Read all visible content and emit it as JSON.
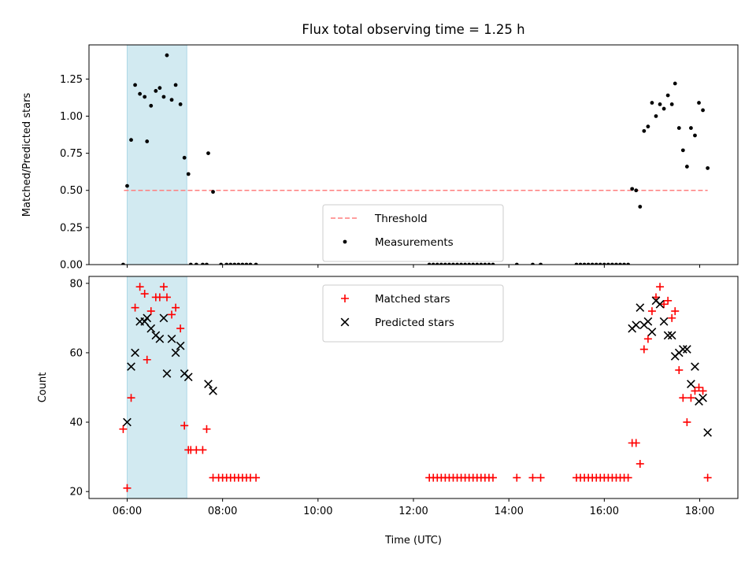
{
  "chart_data": {
    "title": "Flux total observing time = 1.25 h",
    "shaded_interval": [
      "06:00",
      "07:15"
    ],
    "shade_color": "#add8e6",
    "x_axis": {
      "label": "Time (UTC)",
      "range": [
        "05:12",
        "18:48"
      ],
      "ticks": [
        "06:00",
        "08:00",
        "10:00",
        "12:00",
        "14:00",
        "16:00",
        "18:00"
      ]
    },
    "panels": [
      {
        "type": "scatter",
        "ylabel": "Matched/Predicted stars",
        "ylim": [
          0,
          1.48
        ],
        "yticks": [
          "0.00",
          "0.25",
          "0.50",
          "0.75",
          "1.00",
          "1.25"
        ],
        "legend_position": "bottom-center",
        "threshold": {
          "name": "Threshold",
          "value": 0.5,
          "x_range": [
            "05:56",
            "18:10"
          ],
          "color": "#ff7f7f"
        },
        "series": [
          {
            "name": "Measurements",
            "color": "#000000",
            "marker": "dot",
            "points": [
              [
                "05:55",
                0.0
              ],
              [
                "06:00",
                0.53
              ],
              [
                "06:05",
                0.84
              ],
              [
                "06:10",
                1.21
              ],
              [
                "06:16",
                1.15
              ],
              [
                "06:22",
                1.13
              ],
              [
                "06:25",
                0.83
              ],
              [
                "06:30",
                1.07
              ],
              [
                "06:36",
                1.17
              ],
              [
                "06:41",
                1.19
              ],
              [
                "06:46",
                1.13
              ],
              [
                "06:50",
                1.41
              ],
              [
                "06:56",
                1.11
              ],
              [
                "07:01",
                1.21
              ],
              [
                "07:07",
                1.08
              ],
              [
                "07:12",
                0.72
              ],
              [
                "07:17",
                0.61
              ],
              [
                "07:20",
                0.0
              ],
              [
                "07:27",
                0.0
              ],
              [
                "07:35",
                0.0
              ],
              [
                "07:40",
                0.0
              ],
              [
                "07:42",
                0.75
              ],
              [
                "07:48",
                0.49
              ],
              [
                "07:58",
                0.0
              ],
              [
                "08:05",
                0.0
              ],
              [
                "08:10",
                0.0
              ],
              [
                "08:15",
                0.0
              ],
              [
                "08:20",
                0.0
              ],
              [
                "08:25",
                0.0
              ],
              [
                "08:30",
                0.0
              ],
              [
                "08:35",
                0.0
              ],
              [
                "08:42",
                0.0
              ],
              [
                "12:20",
                0.0
              ],
              [
                "12:25",
                0.0
              ],
              [
                "12:30",
                0.0
              ],
              [
                "12:35",
                0.0
              ],
              [
                "12:40",
                0.0
              ],
              [
                "12:45",
                0.0
              ],
              [
                "12:50",
                0.0
              ],
              [
                "12:55",
                0.0
              ],
              [
                "13:00",
                0.0
              ],
              [
                "13:05",
                0.0
              ],
              [
                "13:10",
                0.0
              ],
              [
                "13:15",
                0.0
              ],
              [
                "13:20",
                0.0
              ],
              [
                "13:25",
                0.0
              ],
              [
                "13:30",
                0.0
              ],
              [
                "13:35",
                0.0
              ],
              [
                "13:40",
                0.0
              ],
              [
                "14:10",
                0.0
              ],
              [
                "14:30",
                0.0
              ],
              [
                "14:40",
                0.0
              ],
              [
                "15:25",
                0.0
              ],
              [
                "15:30",
                0.0
              ],
              [
                "15:35",
                0.0
              ],
              [
                "15:40",
                0.0
              ],
              [
                "15:45",
                0.0
              ],
              [
                "15:50",
                0.0
              ],
              [
                "15:55",
                0.0
              ],
              [
                "16:00",
                0.0
              ],
              [
                "16:05",
                0.0
              ],
              [
                "16:10",
                0.0
              ],
              [
                "16:15",
                0.0
              ],
              [
                "16:20",
                0.0
              ],
              [
                "16:25",
                0.0
              ],
              [
                "16:30",
                0.0
              ],
              [
                "16:35",
                0.51
              ],
              [
                "16:40",
                0.5
              ],
              [
                "16:45",
                0.39
              ],
              [
                "16:50",
                0.9
              ],
              [
                "16:55",
                0.93
              ],
              [
                "17:00",
                1.09
              ],
              [
                "17:05",
                1.0
              ],
              [
                "17:10",
                1.08
              ],
              [
                "17:15",
                1.05
              ],
              [
                "17:20",
                1.14
              ],
              [
                "17:25",
                1.08
              ],
              [
                "17:29",
                1.22
              ],
              [
                "17:34",
                0.92
              ],
              [
                "17:39",
                0.77
              ],
              [
                "17:44",
                0.66
              ],
              [
                "17:49",
                0.92
              ],
              [
                "17:54",
                0.87
              ],
              [
                "17:59",
                1.09
              ],
              [
                "18:04",
                1.04
              ],
              [
                "18:10",
                0.65
              ]
            ]
          }
        ]
      },
      {
        "type": "scatter",
        "ylabel": "Count",
        "ylim": [
          18,
          82
        ],
        "yticks": [
          "20",
          "40",
          "60",
          "80"
        ],
        "legend_position": "top-center",
        "series": [
          {
            "name": "Matched stars",
            "color": "#ff0000",
            "marker": "plus",
            "points": [
              [
                "05:55",
                38
              ],
              [
                "06:00",
                21
              ],
              [
                "06:05",
                47
              ],
              [
                "06:10",
                73
              ],
              [
                "06:16",
                79
              ],
              [
                "06:22",
                77
              ],
              [
                "06:25",
                58
              ],
              [
                "06:30",
                72
              ],
              [
                "06:36",
                76
              ],
              [
                "06:41",
                76
              ],
              [
                "06:46",
                79
              ],
              [
                "06:50",
                76
              ],
              [
                "06:56",
                71
              ],
              [
                "07:01",
                73
              ],
              [
                "07:07",
                67
              ],
              [
                "07:12",
                39
              ],
              [
                "07:17",
                32
              ],
              [
                "07:20",
                32
              ],
              [
                "07:27",
                32
              ],
              [
                "07:35",
                32
              ],
              [
                "07:40",
                38
              ],
              [
                "07:48",
                24
              ],
              [
                "07:55",
                24
              ],
              [
                "08:00",
                24
              ],
              [
                "08:05",
                24
              ],
              [
                "08:10",
                24
              ],
              [
                "08:15",
                24
              ],
              [
                "08:20",
                24
              ],
              [
                "08:25",
                24
              ],
              [
                "08:30",
                24
              ],
              [
                "08:35",
                24
              ],
              [
                "08:42",
                24
              ],
              [
                "12:20",
                24
              ],
              [
                "12:25",
                24
              ],
              [
                "12:30",
                24
              ],
              [
                "12:35",
                24
              ],
              [
                "12:40",
                24
              ],
              [
                "12:45",
                24
              ],
              [
                "12:50",
                24
              ],
              [
                "12:55",
                24
              ],
              [
                "13:00",
                24
              ],
              [
                "13:05",
                24
              ],
              [
                "13:10",
                24
              ],
              [
                "13:15",
                24
              ],
              [
                "13:20",
                24
              ],
              [
                "13:25",
                24
              ],
              [
                "13:30",
                24
              ],
              [
                "13:35",
                24
              ],
              [
                "13:40",
                24
              ],
              [
                "14:10",
                24
              ],
              [
                "14:30",
                24
              ],
              [
                "14:40",
                24
              ],
              [
                "15:25",
                24
              ],
              [
                "15:30",
                24
              ],
              [
                "15:35",
                24
              ],
              [
                "15:40",
                24
              ],
              [
                "15:45",
                24
              ],
              [
                "15:50",
                24
              ],
              [
                "15:55",
                24
              ],
              [
                "16:00",
                24
              ],
              [
                "16:05",
                24
              ],
              [
                "16:10",
                24
              ],
              [
                "16:15",
                24
              ],
              [
                "16:20",
                24
              ],
              [
                "16:25",
                24
              ],
              [
                "16:30",
                24
              ],
              [
                "16:35",
                34
              ],
              [
                "16:40",
                34
              ],
              [
                "16:45",
                28
              ],
              [
                "16:50",
                61
              ],
              [
                "16:55",
                64
              ],
              [
                "17:00",
                72
              ],
              [
                "17:05",
                76
              ],
              [
                "17:10",
                79
              ],
              [
                "17:15",
                74
              ],
              [
                "17:20",
                75
              ],
              [
                "17:25",
                70
              ],
              [
                "17:29",
                72
              ],
              [
                "17:34",
                55
              ],
              [
                "17:39",
                47
              ],
              [
                "17:44",
                40
              ],
              [
                "17:49",
                47
              ],
              [
                "17:54",
                49
              ],
              [
                "17:59",
                50
              ],
              [
                "18:04",
                49
              ],
              [
                "18:10",
                24
              ]
            ]
          },
          {
            "name": "Predicted stars",
            "color": "#000000",
            "marker": "x",
            "points": [
              [
                "06:00",
                40
              ],
              [
                "06:05",
                56
              ],
              [
                "06:10",
                60
              ],
              [
                "06:16",
                69
              ],
              [
                "06:22",
                69
              ],
              [
                "06:25",
                70
              ],
              [
                "06:30",
                67
              ],
              [
                "06:36",
                65
              ],
              [
                "06:41",
                64
              ],
              [
                "06:46",
                70
              ],
              [
                "06:50",
                54
              ],
              [
                "06:56",
                64
              ],
              [
                "07:01",
                60
              ],
              [
                "07:07",
                62
              ],
              [
                "07:12",
                54
              ],
              [
                "07:17",
                53
              ],
              [
                "07:42",
                51
              ],
              [
                "07:48",
                49
              ],
              [
                "16:35",
                67
              ],
              [
                "16:40",
                68
              ],
              [
                "16:45",
                73
              ],
              [
                "16:50",
                68
              ],
              [
                "16:55",
                69
              ],
              [
                "17:00",
                66
              ],
              [
                "17:05",
                75
              ],
              [
                "17:10",
                74
              ],
              [
                "17:15",
                69
              ],
              [
                "17:20",
                65
              ],
              [
                "17:25",
                65
              ],
              [
                "17:29",
                59
              ],
              [
                "17:34",
                60
              ],
              [
                "17:39",
                61
              ],
              [
                "17:44",
                61
              ],
              [
                "17:49",
                51
              ],
              [
                "17:54",
                56
              ],
              [
                "17:59",
                46
              ],
              [
                "18:04",
                47
              ],
              [
                "18:10",
                37
              ]
            ]
          }
        ]
      }
    ]
  }
}
